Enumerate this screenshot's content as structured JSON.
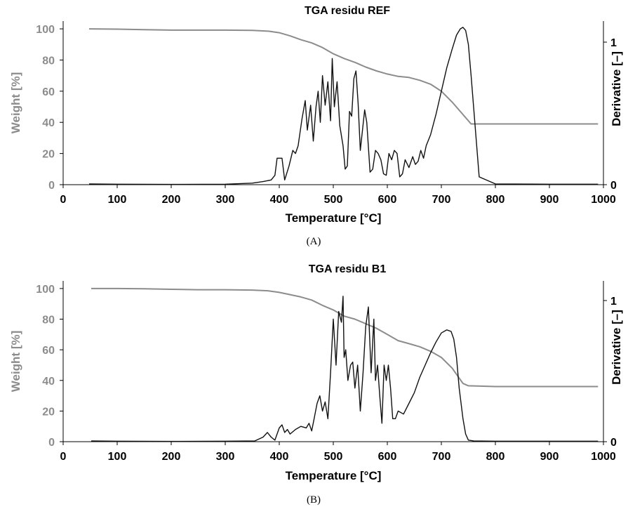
{
  "colors": {
    "weight": "#8c8c8c",
    "derivative": "#111111",
    "axis": "#000000"
  },
  "chart_data": [
    {
      "type": "line",
      "title": "TGA residu REF",
      "caption": "(A)",
      "xlabel": "Temperature [°C]",
      "ylabel": "Weight [%]",
      "y2label": "Derivative [–]",
      "xlim": [
        0,
        1000
      ],
      "ylim": [
        0,
        105
      ],
      "y2lim": [
        0,
        105
      ],
      "x_ticks": [
        "0",
        "100",
        "200",
        "300",
        "400",
        "500",
        "600",
        "700",
        "800",
        "900",
        "1000"
      ],
      "y_ticks": [
        "0",
        "20",
        "40",
        "60",
        "80",
        "100"
      ],
      "y2_ticks": [
        "0",
        "1"
      ],
      "grid": false,
      "series": [
        {
          "axis": "left",
          "x": [
            48,
            100,
            150,
            200,
            250,
            300,
            350,
            380,
            400,
            420,
            440,
            460,
            480,
            500,
            520,
            540,
            560,
            580,
            600,
            620,
            640,
            660,
            680,
            700,
            720,
            740,
            755,
            770,
            800,
            850,
            900,
            950,
            990
          ],
          "y": [
            100,
            99.8,
            99.5,
            99.2,
            99.2,
            99.2,
            99,
            98.5,
            97.5,
            95.5,
            93,
            91,
            88,
            84,
            81,
            78.5,
            75.5,
            73,
            71,
            69.5,
            68.8,
            67,
            64.5,
            60,
            53,
            45,
            39,
            39,
            39,
            39,
            39,
            39,
            39
          ]
        },
        {
          "axis": "right",
          "x": [
            48,
            100,
            200,
            300,
            350,
            370,
            385,
            392,
            396,
            405,
            410,
            418,
            425,
            430,
            435,
            442,
            448,
            452,
            458,
            463,
            468,
            472,
            476,
            480,
            485,
            490,
            495,
            498,
            502,
            507,
            512,
            518,
            522,
            526,
            530,
            534,
            538,
            542,
            546,
            550,
            554,
            558,
            562,
            568,
            573,
            578,
            583,
            588,
            593,
            598,
            603,
            608,
            613,
            618,
            623,
            628,
            633,
            640,
            647,
            652,
            657,
            662,
            667,
            672,
            680,
            690,
            700,
            710,
            720,
            728,
            735,
            740,
            745,
            750,
            755,
            762,
            770,
            800,
            900,
            990
          ],
          "y": [
            0.5,
            0.3,
            0.2,
            0.3,
            1,
            2,
            3,
            6,
            17,
            17,
            3,
            12,
            22,
            20,
            25,
            42,
            54,
            35,
            51,
            28,
            50,
            60,
            40,
            70,
            51,
            66,
            41,
            81,
            50,
            66,
            38,
            25,
            10,
            12,
            47,
            44,
            68,
            73,
            52,
            22,
            35,
            48,
            40,
            8,
            10,
            22,
            20,
            16,
            7,
            6,
            20,
            16,
            22,
            20,
            5,
            7,
            16,
            11,
            18,
            13,
            15,
            22,
            17,
            25,
            32,
            45,
            60,
            75,
            87,
            96,
            100,
            101,
            99,
            90,
            70,
            40,
            5,
            0.5,
            0.3,
            0.3
          ]
        }
      ]
    },
    {
      "type": "line",
      "title": "TGA residu B1",
      "caption": "(B)",
      "xlabel": "Temperature [°C]",
      "ylabel": "Weight [%]",
      "y2label": "Derivative [–]",
      "xlim": [
        0,
        1000
      ],
      "ylim": [
        0,
        105
      ],
      "y2lim": [
        0,
        105
      ],
      "x_ticks": [
        "0",
        "100",
        "200",
        "300",
        "400",
        "500",
        "600",
        "700",
        "800",
        "900",
        "1000"
      ],
      "y_ticks": [
        "0",
        "20",
        "40",
        "60",
        "80",
        "100"
      ],
      "y2_ticks": [
        "0",
        "1"
      ],
      "grid": false,
      "series": [
        {
          "axis": "left",
          "x": [
            52,
            100,
            150,
            200,
            250,
            300,
            350,
            380,
            400,
            420,
            440,
            460,
            480,
            500,
            520,
            540,
            560,
            580,
            600,
            620,
            640,
            660,
            680,
            700,
            720,
            740,
            750,
            800,
            850,
            900,
            950,
            990
          ],
          "y": [
            100,
            100,
            99.8,
            99.5,
            99.2,
            99.2,
            99,
            98.5,
            97.5,
            96,
            94.5,
            92.5,
            89,
            86,
            82,
            80,
            77,
            74,
            70,
            66,
            64,
            62,
            59,
            55,
            48,
            38,
            36.5,
            36,
            36,
            36,
            36,
            36
          ]
        },
        {
          "axis": "right",
          "x": [
            52,
            100,
            200,
            300,
            355,
            370,
            378,
            385,
            392,
            400,
            405,
            410,
            415,
            420,
            430,
            440,
            450,
            455,
            460,
            465,
            470,
            475,
            480,
            485,
            490,
            495,
            500,
            505,
            510,
            515,
            518,
            520,
            523,
            527,
            532,
            536,
            540,
            545,
            550,
            555,
            560,
            565,
            570,
            575,
            578,
            582,
            586,
            590,
            594,
            598,
            602,
            606,
            610,
            615,
            620,
            630,
            640,
            650,
            660,
            670,
            680,
            690,
            700,
            710,
            718,
            723,
            728,
            733,
            740,
            745,
            750,
            760,
            800,
            900,
            990
          ],
          "y": [
            0.5,
            0.3,
            0.2,
            0.3,
            0.5,
            3,
            6,
            3,
            1,
            9,
            11,
            6,
            8,
            5,
            8,
            10,
            9,
            12,
            7,
            16,
            25,
            30,
            20,
            26,
            15,
            45,
            80,
            50,
            85,
            78,
            95,
            55,
            60,
            40,
            50,
            52,
            35,
            50,
            20,
            45,
            75,
            88,
            45,
            80,
            40,
            50,
            30,
            12,
            50,
            40,
            50,
            35,
            15,
            15,
            20,
            18,
            25,
            32,
            42,
            50,
            58,
            65,
            71,
            73,
            72,
            67,
            55,
            35,
            15,
            5,
            1,
            0.5,
            0.3,
            0.3,
            0.3
          ]
        }
      ]
    }
  ]
}
